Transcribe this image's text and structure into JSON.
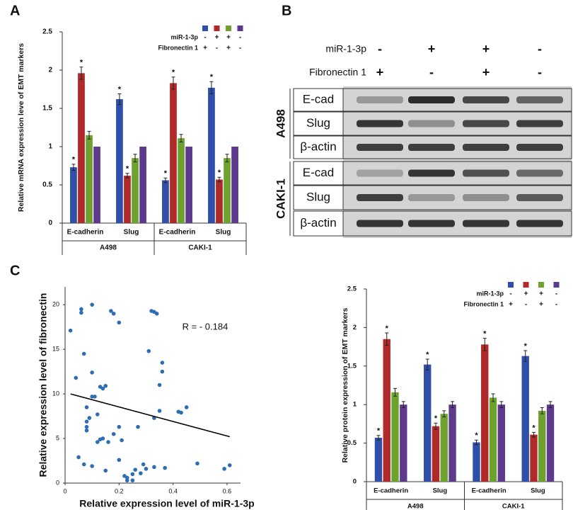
{
  "panels": [
    "A",
    "B",
    "C"
  ],
  "chart_data": [
    {
      "type": "bar",
      "y_label": "Relative mRNA expression leve of EMT markers",
      "categories": [
        "E-cadherin",
        "Slug",
        "E-cadherin",
        "Slug"
      ],
      "group_labels": [
        "A498",
        "CAKI-1"
      ],
      "legend_rows": [
        {
          "label": "miR-1-3p",
          "signs": [
            "-",
            "+",
            "+",
            "-"
          ]
        },
        {
          "label": "Fibronectin 1",
          "signs": [
            "+",
            "-",
            "+",
            "-"
          ]
        }
      ],
      "series": [
        {
          "color": "#2f4fa8",
          "values": [
            0.73,
            1.62,
            0.56,
            1.77
          ],
          "errors": [
            0.04,
            0.07,
            0.03,
            0.08
          ],
          "significance": [
            "*",
            "*",
            "*",
            "*"
          ]
        },
        {
          "color": "#b02a2a",
          "values": [
            1.96,
            0.62,
            1.83,
            0.57
          ],
          "errors": [
            0.08,
            0.03,
            0.08,
            0.03
          ],
          "significance": [
            "*",
            "*",
            "*",
            "*"
          ]
        },
        {
          "color": "#6ea22f",
          "values": [
            1.15,
            0.85,
            1.11,
            0.85
          ],
          "errors": [
            0.05,
            0.05,
            0.05,
            0.05
          ]
        },
        {
          "color": "#5d3a8e",
          "values": [
            1,
            1,
            1,
            1
          ]
        }
      ],
      "ylim": [
        0,
        2.5
      ],
      "yticks": [
        0,
        0.5,
        1,
        1.5,
        2,
        2.5
      ]
    },
    {
      "type": "scatter",
      "x_label": "Relative expression level of miR-1-3p",
      "y_label": "Relative expression level of  fibronectin",
      "annotation": "R = - 0.184",
      "color": "#2e6db4",
      "x": [
        0.02,
        0.04,
        0.05,
        0.06,
        0.06,
        0.07,
        0.07,
        0.08,
        0.08,
        0.08,
        0.09,
        0.08,
        0.1,
        0.1,
        0.1,
        0.1,
        0.11,
        0.12,
        0.12,
        0.13,
        0.13,
        0.14,
        0.14,
        0.15,
        0.15,
        0.16,
        0.17,
        0.18,
        0.18,
        0.2,
        0.2,
        0.2,
        0.21,
        0.22,
        0.23,
        0.23,
        0.25,
        0.25,
        0.26,
        0.27,
        0.28,
        0.29,
        0.3,
        0.31,
        0.32,
        0.33,
        0.34,
        0.33,
        0.33,
        0.35,
        0.35,
        0.36,
        0.36,
        0.37,
        0.42,
        0.43,
        0.45,
        0.49,
        0.59,
        0.61
      ],
      "y": [
        17.1,
        11.8,
        2.9,
        19.1,
        19.5,
        2.1,
        14.5,
        8.5,
        6.9,
        6.3,
        7.3,
        5.9,
        20,
        12.4,
        9.7,
        1.9,
        9.7,
        4.6,
        7.7,
        4.9,
        10.8,
        10.6,
        5.0,
        10.9,
        1.4,
        4.6,
        19.3,
        19.0,
        5.5,
        6.3,
        18.0,
        2.6,
        4.8,
        0.8,
        0.6,
        0.3,
        1.0,
        0.3,
        1.5,
        6.3,
        1.1,
        2.1,
        1.6,
        14.8,
        19.3,
        19.2,
        19.0,
        7.3,
        1.8,
        11.0,
        8.1,
        13.5,
        12.5,
        1.7,
        8.0,
        7.9,
        8.5,
        2.2,
        1.6,
        2.0
      ],
      "trendline": {
        "x": [
          0.02,
          0.61
        ],
        "y": [
          10.0,
          5.2
        ]
      },
      "xlim": [
        0,
        0.65
      ],
      "xticks": [
        0,
        0.2,
        0.4,
        0.6
      ],
      "ylim": [
        0,
        22
      ],
      "yticks": [
        0,
        5,
        10,
        15,
        20
      ]
    },
    {
      "type": "bar",
      "y_label": "Relative protein expression of EMT markers",
      "categories": [
        "E-cadherin",
        "Slug",
        "E-cadherin",
        "Slug"
      ],
      "group_labels": [
        "A498",
        "CAKI-1"
      ],
      "legend_rows": [
        {
          "label": "miR-1-3p",
          "signs": [
            "-",
            "+",
            "+",
            "-"
          ]
        },
        {
          "label": "Fibronectin 1",
          "signs": [
            "+",
            "-",
            "+",
            "-"
          ]
        }
      ],
      "series": [
        {
          "color": "#2f4fa8",
          "values": [
            0.57,
            1.52,
            0.51,
            1.63
          ],
          "errors": [
            0.03,
            0.07,
            0.03,
            0.07
          ],
          "significance": [
            "*",
            "*",
            "*",
            "*"
          ]
        },
        {
          "color": "#b02a2a",
          "values": [
            1.85,
            0.72,
            1.78,
            0.61
          ],
          "errors": [
            0.08,
            0.04,
            0.08,
            0.03
          ],
          "significance": [
            "*",
            "*",
            "*",
            "*"
          ]
        },
        {
          "color": "#6ea22f",
          "values": [
            1.16,
            0.88,
            1.09,
            0.92
          ],
          "errors": [
            0.05,
            0.04,
            0.05,
            0.04
          ]
        },
        {
          "color": "#5d3a8e",
          "values": [
            1,
            1,
            1,
            1
          ],
          "errors": [
            0.04,
            0.04,
            0.04,
            0.04
          ]
        }
      ],
      "ylim": [
        0,
        2.5
      ],
      "yticks": [
        0,
        0.5,
        1,
        1.5,
        2,
        2.5
      ]
    }
  ],
  "blot": {
    "header_rows": [
      {
        "label": "miR-1-3p",
        "signs": [
          "-",
          "+",
          "+",
          "-"
        ]
      },
      {
        "label": "Fibronectin 1",
        "signs": [
          "+",
          "-",
          "+",
          "-"
        ]
      }
    ],
    "groups": [
      {
        "label": "A498",
        "rows": [
          "E-cad",
          "Slug",
          "β-actin"
        ]
      },
      {
        "label": "CAKI-1",
        "rows": [
          "E-cad",
          "Slug",
          "β-actin"
        ]
      }
    ]
  }
}
